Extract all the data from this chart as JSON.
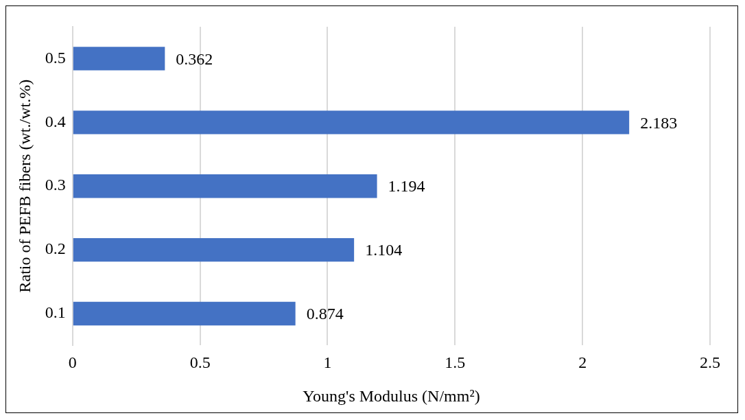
{
  "chart_data": {
    "type": "bar",
    "orientation": "horizontal",
    "xlabel": "Young's Modulus (N/mm²)",
    "ylabel": "Ratio of PEFB fibers (wt./wt.%)",
    "categories": [
      "0.5",
      "0.4",
      "0.3",
      "0.2",
      "0.1"
    ],
    "values": [
      0.362,
      2.183,
      1.194,
      1.104,
      0.874
    ],
    "color": "#4472c4",
    "xlim": [
      0,
      2.5
    ],
    "xticks": [
      0,
      0.5,
      1,
      1.5,
      2,
      2.5
    ],
    "grid": "x",
    "data_labels": true,
    "legend": false
  }
}
